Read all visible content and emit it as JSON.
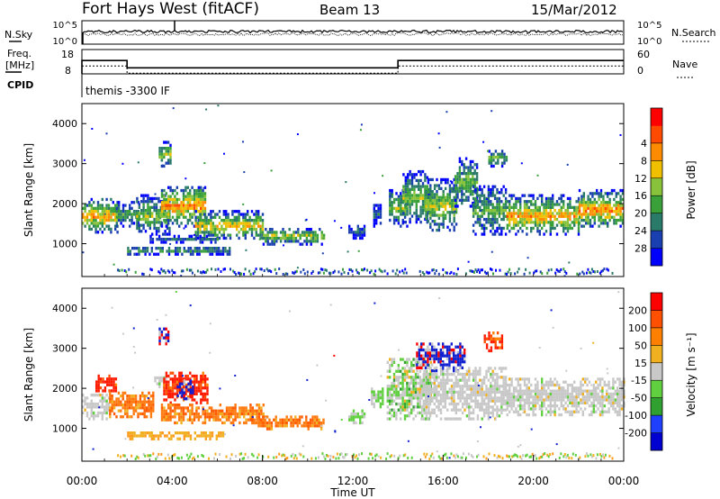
{
  "header": {
    "radar": "Fort Hays West (fitACF)",
    "beam": "Beam 13",
    "date": "15/Mar/2012"
  },
  "noise_panel": {
    "left_label": "N.Sky",
    "right_label": "N.Search",
    "ticks_left": [
      "10^5",
      "10^0"
    ],
    "ticks_right": [
      "10^5",
      "10^0"
    ]
  },
  "freq_panel": {
    "left_label_lines": [
      "Freq.",
      "[MHz]"
    ],
    "right_label": "Nave",
    "ticks_left": [
      "18",
      "8"
    ],
    "ticks_right": [
      "60",
      "0"
    ],
    "freq_high": 13.5,
    "freq_low": 10.5,
    "segments": [
      {
        "start_h": 0.0,
        "end_h": 2.0,
        "level": "high"
      },
      {
        "start_h": 2.0,
        "end_h": 14.0,
        "level": "low"
      },
      {
        "start_h": 14.0,
        "end_h": 24.0,
        "level": "high"
      }
    ]
  },
  "cpid": {
    "label": "CPID",
    "program": "themis -3300 IF"
  },
  "chart_data": [
    {
      "type": "heatmap",
      "panel": "power",
      "ylabel": "Slant Range [km]",
      "xlabel": "",
      "xlim": [
        0,
        24
      ],
      "ylim": [
        180,
        4500
      ],
      "yticks": [
        1000,
        2000,
        3000,
        4000
      ],
      "colorbar": {
        "label": "Power [dB]",
        "ticks": [
          "4",
          "8",
          "12",
          "16",
          "20",
          "24",
          "28"
        ],
        "colors": [
          "#0000ff",
          "#1a3fb0",
          "#2a7a6a",
          "#3aa03a",
          "#88c23a",
          "#f0c000",
          "#ff8c00",
          "#ff4a00",
          "#ff0000"
        ]
      },
      "regions": [
        {
          "t0": 0.0,
          "t1": 1.6,
          "r0": 1250,
          "r1": 2100,
          "core": 1650,
          "strength": 0.75
        },
        {
          "t0": 1.5,
          "t1": 2.5,
          "r0": 1400,
          "r1": 2000,
          "core": 1700,
          "strength": 0.45
        },
        {
          "t0": 2.4,
          "t1": 3.9,
          "r0": 1200,
          "r1": 2200,
          "core": 1650,
          "strength": 0.55
        },
        {
          "t0": 3.4,
          "t1": 3.9,
          "r0": 2900,
          "r1": 3500,
          "core": 3200,
          "strength": 0.6
        },
        {
          "t0": 3.5,
          "t1": 5.5,
          "r0": 1400,
          "r1": 2400,
          "core": 1900,
          "strength": 0.8
        },
        {
          "t0": 5.0,
          "t1": 8.0,
          "r0": 1100,
          "r1": 1800,
          "core": 1400,
          "strength": 0.7
        },
        {
          "t0": 8.0,
          "t1": 10.7,
          "r0": 950,
          "r1": 1350,
          "core": 1150,
          "strength": 0.6
        },
        {
          "t0": 2.0,
          "t1": 6.5,
          "r0": 700,
          "r1": 900,
          "core": 800,
          "strength": 0.45
        },
        {
          "t0": 3.0,
          "t1": 6.0,
          "r0": 1000,
          "r1": 1150,
          "core": 1070,
          "strength": 0.3
        },
        {
          "t0": 11.8,
          "t1": 12.5,
          "r0": 1100,
          "r1": 1400,
          "core": 1250,
          "strength": 0.3
        },
        {
          "t0": 12.9,
          "t1": 13.2,
          "r0": 1400,
          "r1": 2000,
          "core": 1700,
          "strength": 0.3
        },
        {
          "t0": 13.6,
          "t1": 14.4,
          "r0": 1400,
          "r1": 2300,
          "core": 1850,
          "strength": 0.55
        },
        {
          "t0": 14.2,
          "t1": 15.4,
          "r0": 1500,
          "r1": 2800,
          "core": 2100,
          "strength": 0.55
        },
        {
          "t0": 15.2,
          "t1": 16.6,
          "r0": 1300,
          "r1": 2600,
          "core": 1900,
          "strength": 0.6
        },
        {
          "t0": 16.5,
          "t1": 17.5,
          "r0": 1900,
          "r1": 3100,
          "core": 2500,
          "strength": 0.5
        },
        {
          "t0": 17.3,
          "t1": 18.8,
          "r0": 1200,
          "r1": 2400,
          "core": 1800,
          "strength": 0.5
        },
        {
          "t0": 18.0,
          "t1": 18.8,
          "r0": 2900,
          "r1": 3300,
          "core": 3100,
          "strength": 0.55
        },
        {
          "t0": 18.8,
          "t1": 22.0,
          "r0": 1200,
          "r1": 2200,
          "core": 1650,
          "strength": 0.75
        },
        {
          "t0": 22.0,
          "t1": 24.0,
          "r0": 1400,
          "r1": 2300,
          "core": 1800,
          "strength": 0.8
        }
      ]
    },
    {
      "type": "heatmap",
      "panel": "velocity",
      "ylabel": "Slant Range [km]",
      "xlabel": "Time UT",
      "xlim": [
        0,
        24
      ],
      "ylim": [
        180,
        4500
      ],
      "yticks": [
        1000,
        2000,
        3000,
        4000
      ],
      "xticks": [
        "00:00",
        "04:00",
        "08:00",
        "12:00",
        "16:00",
        "20:00",
        "00:00"
      ],
      "colorbar": {
        "label": "Velocity [m s⁻¹]",
        "ticks": [
          "200",
          "100",
          "50",
          "15",
          "-15",
          "-50",
          "-100",
          "-200"
        ],
        "colors": [
          "#0000d0",
          "#2040ff",
          "#30a030",
          "#60d040",
          "#c8c8c8",
          "#f0b020",
          "#ff8000",
          "#ff5000",
          "#ff0000"
        ]
      },
      "regions": [
        {
          "t0": 0.0,
          "t1": 1.2,
          "r0": 1200,
          "r1": 1800,
          "cls": "gray"
        },
        {
          "t0": 0.6,
          "t1": 1.5,
          "r0": 1900,
          "r1": 2300,
          "cls": "red"
        },
        {
          "t0": 1.2,
          "t1": 3.2,
          "r0": 1250,
          "r1": 1900,
          "cls": "orange"
        },
        {
          "t0": 3.2,
          "t1": 3.7,
          "r0": 2000,
          "r1": 2300,
          "cls": "gray"
        },
        {
          "t0": 3.4,
          "t1": 3.8,
          "r0": 3000,
          "r1": 3500,
          "cls": "redblue"
        },
        {
          "t0": 3.6,
          "t1": 5.6,
          "r0": 1600,
          "r1": 2400,
          "cls": "red"
        },
        {
          "t0": 4.2,
          "t1": 4.9,
          "r0": 1700,
          "r1": 2200,
          "cls": "blue"
        },
        {
          "t0": 3.5,
          "t1": 8.0,
          "r0": 1100,
          "r1": 1550,
          "cls": "orange"
        },
        {
          "t0": 7.5,
          "t1": 10.7,
          "r0": 950,
          "r1": 1300,
          "cls": "orange"
        },
        {
          "t0": 2.0,
          "t1": 6.3,
          "r0": 700,
          "r1": 880,
          "cls": "yellow"
        },
        {
          "t0": 11.8,
          "t1": 12.5,
          "r0": 1100,
          "r1": 1400,
          "cls": "green"
        },
        {
          "t0": 12.8,
          "t1": 13.3,
          "r0": 1500,
          "r1": 2000,
          "cls": "green"
        },
        {
          "t0": 13.5,
          "t1": 15.5,
          "r0": 1200,
          "r1": 2700,
          "cls": "mixgreen"
        },
        {
          "t0": 14.8,
          "t1": 17.0,
          "r0": 2400,
          "r1": 3100,
          "cls": "blue"
        },
        {
          "t0": 15.0,
          "t1": 18.8,
          "r0": 1200,
          "r1": 2500,
          "cls": "gray"
        },
        {
          "t0": 17.8,
          "t1": 18.6,
          "r0": 2900,
          "r1": 3400,
          "cls": "red"
        },
        {
          "t0": 18.8,
          "t1": 24.0,
          "r0": 1300,
          "r1": 2200,
          "cls": "gray"
        }
      ]
    }
  ]
}
